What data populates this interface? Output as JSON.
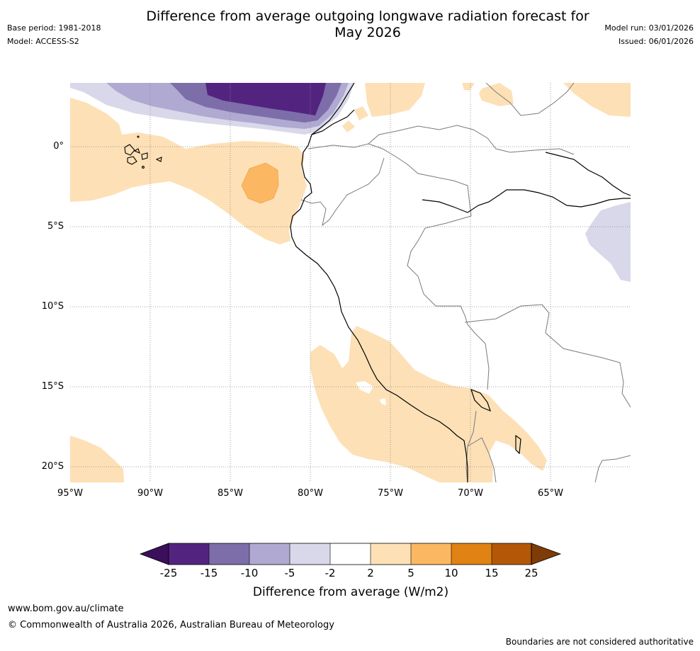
{
  "title_line1": "Difference from average outgoing longwave radiation forecast for",
  "title_line2": "May 2026",
  "base_period": "Base period: 1981-2018",
  "model": "Model: ACCESS-S2",
  "model_run": "Model run: 03/01/2026",
  "issued": "Issued: 06/01/2026",
  "map": {
    "lon_range": [
      -95,
      -60
    ],
    "lat_range": [
      -21,
      4
    ],
    "lat_labels": [
      "0°",
      "5°S",
      "10°S",
      "15°S",
      "20°S"
    ],
    "lon_labels": [
      "95°W",
      "90°W",
      "85°W",
      "80°W",
      "75°W",
      "70°W",
      "65°W"
    ]
  },
  "colorbar": {
    "title": "Difference from average (W/m2)",
    "ticks": [
      "-25",
      "-15",
      "-10",
      "-5",
      "-2",
      "2",
      "5",
      "10",
      "15",
      "25"
    ],
    "colors": {
      "below_min": "#3b0f5c",
      "b1": "#53247f",
      "b2": "#7d6eaa",
      "b3": "#b0a9d1",
      "b4": "#d8d8ea",
      "b5": "#ffffff",
      "b6": "#fde0b6",
      "b7": "#fbb761",
      "b8": "#e08214",
      "b9": "#b35806",
      "above_max": "#7f3b08"
    }
  },
  "footer": {
    "website": "www.bom.gov.au/climate",
    "copyright": "© Commonwealth of Australia 2026, Australian Bureau of Meteorology",
    "disclaimer": "Boundaries are not considered authoritative"
  }
}
